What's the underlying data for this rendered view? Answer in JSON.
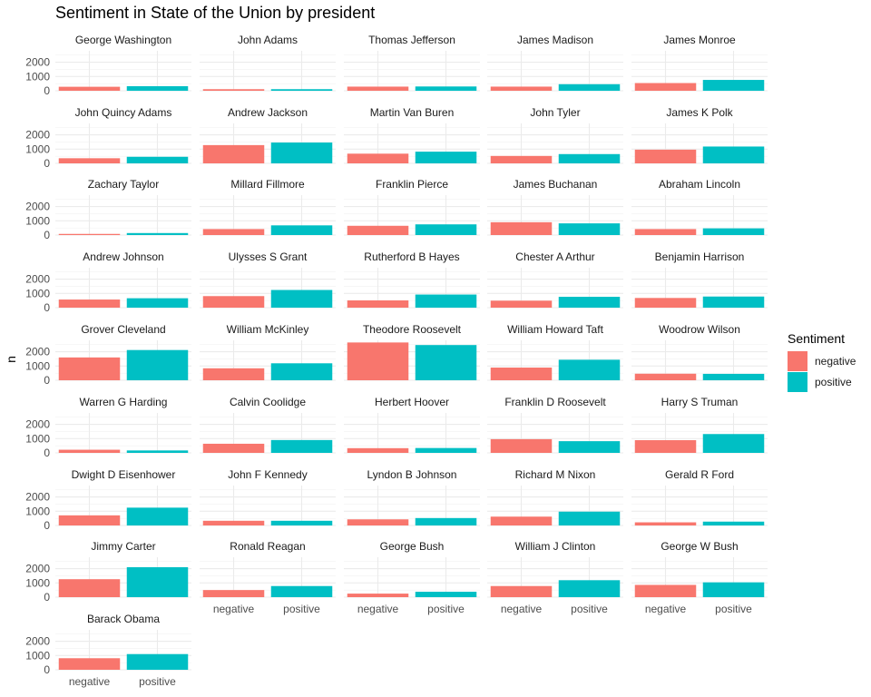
{
  "chart_data": {
    "type": "bar",
    "title": "Sentiment in State of the Union by president",
    "xlabel": "",
    "ylabel": "n",
    "categories": [
      "negative",
      "positive"
    ],
    "y_ticks": [
      0,
      1000,
      2000
    ],
    "ylim": [
      0,
      2800
    ],
    "grid": true,
    "legend": {
      "title": "Sentiment",
      "placement": "right",
      "entries": [
        "negative",
        "positive"
      ]
    },
    "colors": {
      "negative": "#F8766D",
      "positive": "#00BFC4"
    },
    "facets": [
      {
        "name": "George Washington",
        "values": [
          280,
          320
        ]
      },
      {
        "name": "John Adams",
        "values": [
          110,
          110
        ]
      },
      {
        "name": "Thomas Jefferson",
        "values": [
          290,
          300
        ]
      },
      {
        "name": "James Madison",
        "values": [
          290,
          460
        ]
      },
      {
        "name": "James Monroe",
        "values": [
          540,
          760
        ]
      },
      {
        "name": "John Quincy Adams",
        "values": [
          360,
          460
        ]
      },
      {
        "name": "Andrew Jackson",
        "values": [
          1280,
          1460
        ]
      },
      {
        "name": "Martin Van Buren",
        "values": [
          680,
          820
        ]
      },
      {
        "name": "John Tyler",
        "values": [
          520,
          650
        ]
      },
      {
        "name": "James K Polk",
        "values": [
          960,
          1180
        ]
      },
      {
        "name": "Zachary Taylor",
        "values": [
          80,
          140
        ]
      },
      {
        "name": "Millard Fillmore",
        "values": [
          420,
          680
        ]
      },
      {
        "name": "Franklin Pierce",
        "values": [
          650,
          750
        ]
      },
      {
        "name": "James Buchanan",
        "values": [
          900,
          820
        ]
      },
      {
        "name": "Abraham Lincoln",
        "values": [
          420,
          470
        ]
      },
      {
        "name": "Andrew Johnson",
        "values": [
          570,
          660
        ]
      },
      {
        "name": "Ulysses S Grant",
        "values": [
          810,
          1240
        ]
      },
      {
        "name": "Rutherford B Hayes",
        "values": [
          510,
          920
        ]
      },
      {
        "name": "Chester A Arthur",
        "values": [
          490,
          760
        ]
      },
      {
        "name": "Benjamin Harrison",
        "values": [
          680,
          780
        ]
      },
      {
        "name": "Grover Cleveland",
        "values": [
          1600,
          2120
        ]
      },
      {
        "name": "William McKinley",
        "values": [
          840,
          1190
        ]
      },
      {
        "name": "Theodore Roosevelt",
        "values": [
          2650,
          2470
        ]
      },
      {
        "name": "William Howard Taft",
        "values": [
          890,
          1440
        ]
      },
      {
        "name": "Woodrow Wilson",
        "values": [
          460,
          450
        ]
      },
      {
        "name": "Warren G Harding",
        "values": [
          220,
          170
        ]
      },
      {
        "name": "Calvin Coolidge",
        "values": [
          640,
          900
        ]
      },
      {
        "name": "Herbert Hoover",
        "values": [
          330,
          340
        ]
      },
      {
        "name": "Franklin D Roosevelt",
        "values": [
          960,
          820
        ]
      },
      {
        "name": "Harry S Truman",
        "values": [
          890,
          1320
        ]
      },
      {
        "name": "Dwight D Eisenhower",
        "values": [
          710,
          1250
        ]
      },
      {
        "name": "John F Kennedy",
        "values": [
          330,
          330
        ]
      },
      {
        "name": "Lyndon B Johnson",
        "values": [
          430,
          520
        ]
      },
      {
        "name": "Richard M Nixon",
        "values": [
          620,
          970
        ]
      },
      {
        "name": "Gerald R Ford",
        "values": [
          220,
          270
        ]
      },
      {
        "name": "Jimmy Carter",
        "values": [
          1260,
          2100
        ]
      },
      {
        "name": "Ronald Reagan",
        "values": [
          500,
          780
        ]
      },
      {
        "name": "George Bush",
        "values": [
          250,
          380
        ]
      },
      {
        "name": "William J Clinton",
        "values": [
          780,
          1190
        ]
      },
      {
        "name": "George W Bush",
        "values": [
          860,
          1040
        ]
      },
      {
        "name": "Barack Obama",
        "values": [
          810,
          1100
        ]
      }
    ]
  }
}
